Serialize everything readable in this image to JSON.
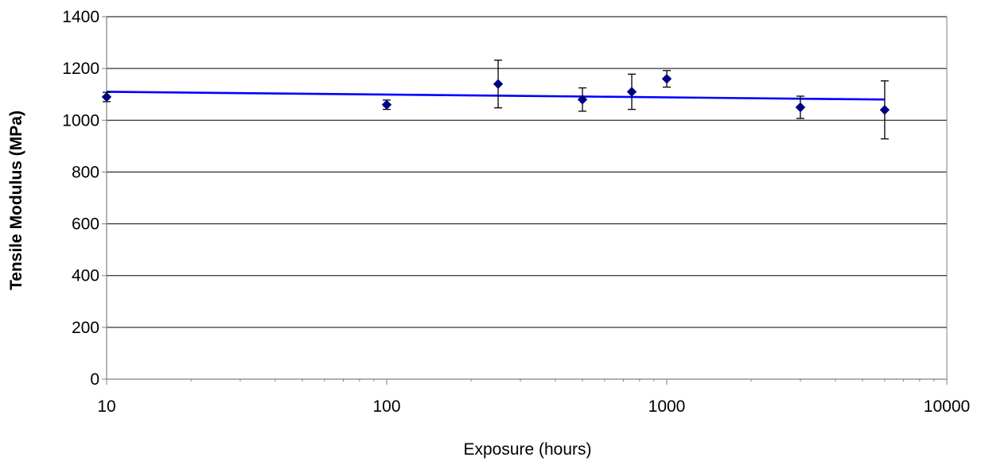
{
  "chart_data": {
    "type": "scatter",
    "title": "",
    "xlabel": "Exposure (hours)",
    "ylabel": "Tensile Modulus (MPa)",
    "x_scale": "log",
    "xlim": [
      10,
      10000
    ],
    "ylim": [
      0,
      1400
    ],
    "x_ticks": [
      10,
      100,
      1000,
      10000
    ],
    "y_ticks": [
      0,
      200,
      400,
      600,
      800,
      1000,
      1200,
      1400
    ],
    "grid": "horizontal",
    "legend": "none",
    "series": [
      {
        "x": [
          10,
          100,
          250,
          500,
          750,
          1000,
          3000,
          6000
        ],
        "y": [
          1090,
          1060,
          1140,
          1080,
          1110,
          1160,
          1050,
          1040
        ],
        "error": [
          18,
          18,
          92,
          45,
          68,
          32,
          43,
          112
        ],
        "marker": "diamond",
        "color": "#000080"
      }
    ],
    "trendline": {
      "type": "log-linear",
      "x": [
        10,
        6000
      ],
      "y": [
        1110,
        1080
      ],
      "color": "#0000ff"
    },
    "error_bar_color": "#000000",
    "gridline_color": "#000000"
  }
}
